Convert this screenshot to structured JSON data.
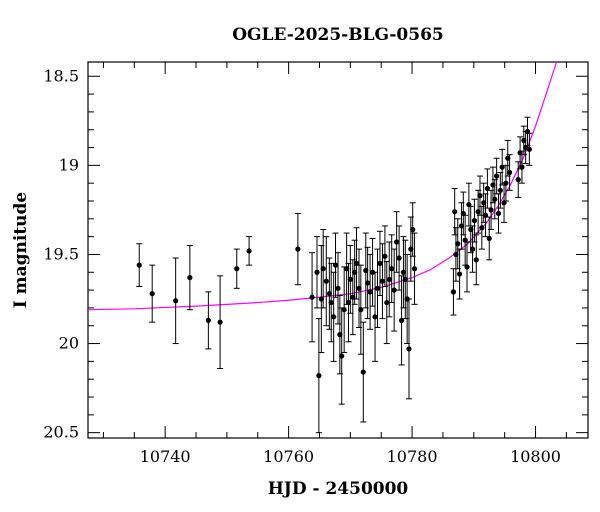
{
  "chart_data": {
    "type": "scatter",
    "title": "OGLE-2025-BLG-0565",
    "xlabel": "HJD - 2450000",
    "ylabel": "I magnitude",
    "xlim": [
      10727.5,
      10808.5
    ],
    "ylim": [
      20.53,
      18.42
    ],
    "y_inverted": true,
    "x_ticks": [
      10740,
      10760,
      10780,
      10800
    ],
    "y_ticks": [
      18.5,
      19,
      19.5,
      20,
      20.5
    ],
    "y_tick_labels": [
      "18.5",
      "19",
      "19.5",
      "20",
      "20.5"
    ],
    "grid": false,
    "colors": {
      "points": "#000000",
      "model": "#ff00ff"
    },
    "series": [
      {
        "kind": "points_with_errorbars",
        "points": [
          {
            "x": 10735.8,
            "y": 19.56,
            "e": 0.12
          },
          {
            "x": 10737.9,
            "y": 19.72,
            "e": 0.16
          },
          {
            "x": 10741.7,
            "y": 19.76,
            "e": 0.24
          },
          {
            "x": 10744.0,
            "y": 19.63,
            "e": 0.18
          },
          {
            "x": 10747.0,
            "y": 19.87,
            "e": 0.16
          },
          {
            "x": 10748.9,
            "y": 19.88,
            "e": 0.26
          },
          {
            "x": 10751.6,
            "y": 19.58,
            "e": 0.11
          },
          {
            "x": 10753.6,
            "y": 19.48,
            "e": 0.08
          },
          {
            "x": 10761.5,
            "y": 19.47,
            "e": 0.2
          },
          {
            "x": 10763.8,
            "y": 19.74,
            "e": 0.25
          },
          {
            "x": 10764.6,
            "y": 19.6,
            "e": 0.2
          },
          {
            "x": 10764.9,
            "y": 20.18,
            "e": 0.32
          },
          {
            "x": 10765.3,
            "y": 19.75,
            "e": 0.3
          },
          {
            "x": 10765.6,
            "y": 19.58,
            "e": 0.22
          },
          {
            "x": 10766.1,
            "y": 19.65,
            "e": 0.25
          },
          {
            "x": 10766.6,
            "y": 19.72,
            "e": 0.2
          },
          {
            "x": 10766.9,
            "y": 19.77,
            "e": 0.22
          },
          {
            "x": 10767.3,
            "y": 19.85,
            "e": 0.25
          },
          {
            "x": 10767.6,
            "y": 19.56,
            "e": 0.18
          },
          {
            "x": 10768.0,
            "y": 19.69,
            "e": 0.2
          },
          {
            "x": 10768.3,
            "y": 19.95,
            "e": 0.22
          },
          {
            "x": 10768.6,
            "y": 20.07,
            "e": 0.27
          },
          {
            "x": 10769.0,
            "y": 19.81,
            "e": 0.24
          },
          {
            "x": 10769.4,
            "y": 19.58,
            "e": 0.2
          },
          {
            "x": 10769.7,
            "y": 19.77,
            "e": 0.22
          },
          {
            "x": 10770.0,
            "y": 19.64,
            "e": 0.19
          },
          {
            "x": 10770.4,
            "y": 19.74,
            "e": 0.21
          },
          {
            "x": 10770.7,
            "y": 19.6,
            "e": 0.18
          },
          {
            "x": 10771.0,
            "y": 19.55,
            "e": 0.2
          },
          {
            "x": 10771.4,
            "y": 19.69,
            "e": 0.22
          },
          {
            "x": 10771.7,
            "y": 19.81,
            "e": 0.25
          },
          {
            "x": 10772.1,
            "y": 20.16,
            "e": 0.28
          },
          {
            "x": 10772.5,
            "y": 19.59,
            "e": 0.21
          },
          {
            "x": 10772.8,
            "y": 19.66,
            "e": 0.2
          },
          {
            "x": 10773.2,
            "y": 19.71,
            "e": 0.21
          },
          {
            "x": 10773.6,
            "y": 19.6,
            "e": 0.19
          },
          {
            "x": 10774.0,
            "y": 19.85,
            "e": 0.25
          },
          {
            "x": 10774.4,
            "y": 19.69,
            "e": 0.22
          },
          {
            "x": 10774.8,
            "y": 19.55,
            "e": 0.18
          },
          {
            "x": 10775.2,
            "y": 19.65,
            "e": 0.21
          },
          {
            "x": 10775.6,
            "y": 19.51,
            "e": 0.17
          },
          {
            "x": 10775.9,
            "y": 19.77,
            "e": 0.23
          },
          {
            "x": 10776.3,
            "y": 19.64,
            "e": 0.21
          },
          {
            "x": 10776.7,
            "y": 19.58,
            "e": 0.19
          },
          {
            "x": 10777.1,
            "y": 19.7,
            "e": 0.23
          },
          {
            "x": 10777.5,
            "y": 19.43,
            "e": 0.17
          },
          {
            "x": 10777.9,
            "y": 19.52,
            "e": 0.18
          },
          {
            "x": 10778.3,
            "y": 19.87,
            "e": 0.25
          },
          {
            "x": 10778.6,
            "y": 19.6,
            "e": 0.2
          },
          {
            "x": 10778.9,
            "y": 19.64,
            "e": 0.22
          },
          {
            "x": 10779.2,
            "y": 19.75,
            "e": 0.25
          },
          {
            "x": 10779.5,
            "y": 20.03,
            "e": 0.28
          },
          {
            "x": 10779.8,
            "y": 19.47,
            "e": 0.18
          },
          {
            "x": 10780.1,
            "y": 19.36,
            "e": 0.15
          },
          {
            "x": 10780.4,
            "y": 19.58,
            "e": 0.2
          },
          {
            "x": 10786.7,
            "y": 19.71,
            "e": 0.13
          },
          {
            "x": 10786.9,
            "y": 19.26,
            "e": 0.13
          },
          {
            "x": 10787.1,
            "y": 19.5,
            "e": 0.15
          },
          {
            "x": 10787.4,
            "y": 19.44,
            "e": 0.14
          },
          {
            "x": 10787.7,
            "y": 19.61,
            "e": 0.14
          },
          {
            "x": 10788.0,
            "y": 19.34,
            "e": 0.13
          },
          {
            "x": 10788.3,
            "y": 19.27,
            "e": 0.12
          },
          {
            "x": 10788.6,
            "y": 19.42,
            "e": 0.14
          },
          {
            "x": 10788.9,
            "y": 19.57,
            "e": 0.14
          },
          {
            "x": 10789.2,
            "y": 19.22,
            "e": 0.12
          },
          {
            "x": 10789.5,
            "y": 19.36,
            "e": 0.13
          },
          {
            "x": 10789.8,
            "y": 19.47,
            "e": 0.13
          },
          {
            "x": 10790.1,
            "y": 19.31,
            "e": 0.12
          },
          {
            "x": 10790.4,
            "y": 19.53,
            "e": 0.14
          },
          {
            "x": 10790.7,
            "y": 19.26,
            "e": 0.12
          },
          {
            "x": 10791.0,
            "y": 19.17,
            "e": 0.11
          },
          {
            "x": 10791.3,
            "y": 19.35,
            "e": 0.12
          },
          {
            "x": 10791.6,
            "y": 19.21,
            "e": 0.11
          },
          {
            "x": 10791.9,
            "y": 19.28,
            "e": 0.12
          },
          {
            "x": 10792.2,
            "y": 19.13,
            "e": 0.11
          },
          {
            "x": 10792.5,
            "y": 19.41,
            "e": 0.12
          },
          {
            "x": 10792.8,
            "y": 19.25,
            "e": 0.11
          },
          {
            "x": 10793.1,
            "y": 19.11,
            "e": 0.1
          },
          {
            "x": 10793.4,
            "y": 19.19,
            "e": 0.11
          },
          {
            "x": 10793.7,
            "y": 19.06,
            "e": 0.1
          },
          {
            "x": 10794.0,
            "y": 19.27,
            "e": 0.11
          },
          {
            "x": 10794.3,
            "y": 19.14,
            "e": 0.1
          },
          {
            "x": 10794.6,
            "y": 19.01,
            "e": 0.1
          },
          {
            "x": 10794.9,
            "y": 19.21,
            "e": 0.11
          },
          {
            "x": 10795.2,
            "y": 19.1,
            "e": 0.1
          },
          {
            "x": 10795.5,
            "y": 18.96,
            "e": 0.1
          },
          {
            "x": 10795.8,
            "y": 19.04,
            "e": 0.1
          },
          {
            "x": 10797.2,
            "y": 19.08,
            "e": 0.1
          },
          {
            "x": 10797.5,
            "y": 18.93,
            "e": 0.09
          },
          {
            "x": 10797.8,
            "y": 19.01,
            "e": 0.09
          },
          {
            "x": 10798.1,
            "y": 18.86,
            "e": 0.08
          },
          {
            "x": 10798.4,
            "y": 18.9,
            "e": 0.09
          },
          {
            "x": 10798.7,
            "y": 18.81,
            "e": 0.08
          },
          {
            "x": 10799.0,
            "y": 18.91,
            "e": 0.09
          }
        ]
      },
      {
        "kind": "model_curve",
        "points": [
          {
            "x": 10727.5,
            "y": 19.81
          },
          {
            "x": 10735,
            "y": 19.805
          },
          {
            "x": 10745,
            "y": 19.79
          },
          {
            "x": 10750,
            "y": 19.78
          },
          {
            "x": 10755,
            "y": 19.77
          },
          {
            "x": 10760,
            "y": 19.757
          },
          {
            "x": 10765,
            "y": 19.74
          },
          {
            "x": 10770,
            "y": 19.72
          },
          {
            "x": 10775,
            "y": 19.685
          },
          {
            "x": 10780,
            "y": 19.63
          },
          {
            "x": 10783,
            "y": 19.585
          },
          {
            "x": 10786,
            "y": 19.52
          },
          {
            "x": 10789,
            "y": 19.44
          },
          {
            "x": 10792,
            "y": 19.325
          },
          {
            "x": 10794,
            "y": 19.225
          },
          {
            "x": 10796,
            "y": 19.105
          },
          {
            "x": 10798,
            "y": 18.96
          },
          {
            "x": 10800,
            "y": 18.78
          },
          {
            "x": 10802,
            "y": 18.57
          },
          {
            "x": 10803.4,
            "y": 18.42
          }
        ]
      }
    ]
  }
}
